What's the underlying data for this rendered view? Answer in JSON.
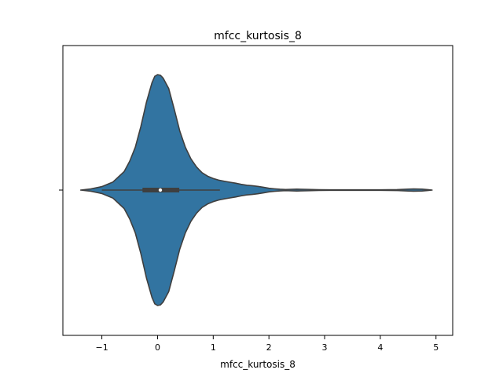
{
  "chart_data": {
    "type": "violin",
    "title": "mfcc_kurtosis_8",
    "xlabel": "mfcc_kurtosis_8",
    "ylabel": "",
    "xlim": [
      -1.7,
      5.3
    ],
    "xticks": [
      -1,
      0,
      1,
      2,
      3,
      4,
      5
    ],
    "xtick_labels": [
      "−1",
      "0",
      "1",
      "2",
      "3",
      "4",
      "5"
    ],
    "grid": false,
    "legend": "none",
    "orientation": "horizontal",
    "series": [
      {
        "fill_color": "#3274a1",
        "edge_color": "#3f3f3f",
        "density_profile": [
          [
            -1.38,
            0.0
          ],
          [
            -1.2,
            0.01
          ],
          [
            -1.0,
            0.03
          ],
          [
            -0.8,
            0.07
          ],
          [
            -0.6,
            0.16
          ],
          [
            -0.5,
            0.25
          ],
          [
            -0.4,
            0.37
          ],
          [
            -0.3,
            0.55
          ],
          [
            -0.2,
            0.76
          ],
          [
            -0.1,
            0.93
          ],
          [
            -0.05,
            0.985
          ],
          [
            0.0,
            1.0
          ],
          [
            0.05,
            0.995
          ],
          [
            0.1,
            0.97
          ],
          [
            0.2,
            0.88
          ],
          [
            0.3,
            0.7
          ],
          [
            0.4,
            0.51
          ],
          [
            0.5,
            0.37
          ],
          [
            0.6,
            0.27
          ],
          [
            0.7,
            0.2
          ],
          [
            0.8,
            0.15
          ],
          [
            0.9,
            0.12
          ],
          [
            1.0,
            0.1
          ],
          [
            1.1,
            0.086
          ],
          [
            1.2,
            0.076
          ],
          [
            1.3,
            0.068
          ],
          [
            1.4,
            0.06
          ],
          [
            1.5,
            0.05
          ],
          [
            1.6,
            0.042
          ],
          [
            1.7,
            0.038
          ],
          [
            1.8,
            0.032
          ],
          [
            1.9,
            0.024
          ],
          [
            2.0,
            0.016
          ],
          [
            2.1,
            0.011
          ],
          [
            2.2,
            0.007
          ],
          [
            2.3,
            0.005
          ],
          [
            2.5,
            0.008
          ],
          [
            2.7,
            0.006
          ],
          [
            2.9,
            0.003
          ],
          [
            3.1,
            0.002
          ],
          [
            3.5,
            0.002
          ],
          [
            4.0,
            0.002
          ],
          [
            4.3,
            0.004
          ],
          [
            4.5,
            0.008
          ],
          [
            4.6,
            0.01
          ],
          [
            4.75,
            0.008
          ],
          [
            4.85,
            0.004
          ],
          [
            4.93,
            0.0
          ]
        ],
        "whisker": [
          -1.0,
          1.12
        ],
        "quartiles": [
          -0.27,
          0.39
        ],
        "median": 0.05
      }
    ]
  }
}
